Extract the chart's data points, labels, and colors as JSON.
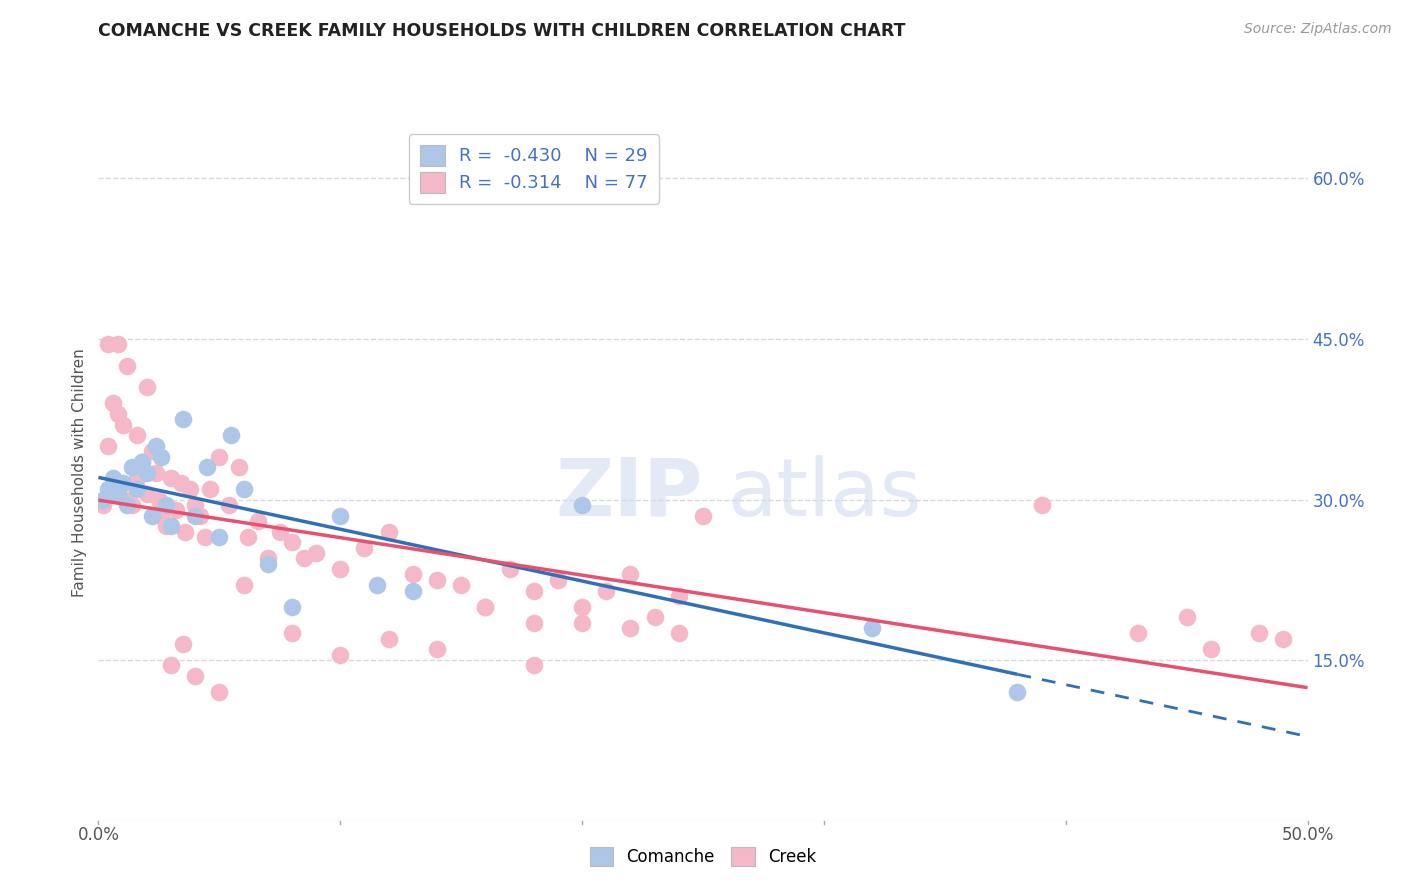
{
  "title": "COMANCHE VS CREEK FAMILY HOUSEHOLDS WITH CHILDREN CORRELATION CHART",
  "source": "Source: ZipAtlas.com",
  "ylabel": "Family Households with Children",
  "xlim": [
    0.0,
    0.5
  ],
  "ylim": [
    0.0,
    0.65
  ],
  "xticks": [
    0.0,
    0.1,
    0.2,
    0.3,
    0.4,
    0.5
  ],
  "xtick_labels": [
    "0.0%",
    "",
    "",
    "",
    "",
    "50.0%"
  ],
  "yticks": [
    0.15,
    0.3,
    0.45,
    0.6
  ],
  "ytick_labels": [
    "15.0%",
    "30.0%",
    "45.0%",
    "60.0%"
  ],
  "grid_color": "#d9d9d9",
  "background_color": "#ffffff",
  "comanche_color": "#aec6e8",
  "creek_color": "#f4b8c8",
  "trend_comanche_color": "#3070b8",
  "trend_creek_color": "#e85070",
  "R_comanche": -0.43,
  "N_comanche": 29,
  "R_creek": -0.314,
  "N_creek": 77,
  "comanche_x": [
    0.002,
    0.004,
    0.006,
    0.008,
    0.01,
    0.012,
    0.014,
    0.016,
    0.018,
    0.02,
    0.022,
    0.024,
    0.026,
    0.028,
    0.03,
    0.035,
    0.04,
    0.045,
    0.05,
    0.055,
    0.06,
    0.07,
    0.08,
    0.1,
    0.115,
    0.13,
    0.2,
    0.32,
    0.38
  ],
  "comanche_y": [
    0.3,
    0.31,
    0.32,
    0.305,
    0.315,
    0.295,
    0.33,
    0.31,
    0.335,
    0.325,
    0.285,
    0.35,
    0.34,
    0.295,
    0.275,
    0.375,
    0.285,
    0.33,
    0.265,
    0.36,
    0.31,
    0.24,
    0.2,
    0.285,
    0.22,
    0.215,
    0.295,
    0.18,
    0.12
  ],
  "creek_x": [
    0.002,
    0.004,
    0.005,
    0.006,
    0.008,
    0.01,
    0.012,
    0.014,
    0.016,
    0.018,
    0.02,
    0.022,
    0.024,
    0.026,
    0.028,
    0.03,
    0.032,
    0.034,
    0.036,
    0.038,
    0.04,
    0.042,
    0.044,
    0.046,
    0.05,
    0.054,
    0.058,
    0.062,
    0.066,
    0.07,
    0.075,
    0.08,
    0.085,
    0.09,
    0.1,
    0.11,
    0.12,
    0.13,
    0.14,
    0.15,
    0.16,
    0.17,
    0.18,
    0.19,
    0.2,
    0.21,
    0.22,
    0.23,
    0.24,
    0.25,
    0.004,
    0.008,
    0.012,
    0.016,
    0.02,
    0.025,
    0.03,
    0.035,
    0.04,
    0.05,
    0.06,
    0.08,
    0.1,
    0.12,
    0.14,
    0.16,
    0.18,
    0.2,
    0.22,
    0.24,
    0.18,
    0.39,
    0.43,
    0.45,
    0.46,
    0.48,
    0.49
  ],
  "creek_y": [
    0.295,
    0.35,
    0.31,
    0.39,
    0.38,
    0.37,
    0.3,
    0.295,
    0.32,
    0.335,
    0.305,
    0.345,
    0.325,
    0.285,
    0.275,
    0.32,
    0.29,
    0.315,
    0.27,
    0.31,
    0.295,
    0.285,
    0.265,
    0.31,
    0.34,
    0.295,
    0.33,
    0.265,
    0.28,
    0.245,
    0.27,
    0.26,
    0.245,
    0.25,
    0.235,
    0.255,
    0.27,
    0.23,
    0.225,
    0.22,
    0.2,
    0.235,
    0.215,
    0.225,
    0.2,
    0.215,
    0.23,
    0.19,
    0.21,
    0.285,
    0.445,
    0.445,
    0.425,
    0.36,
    0.405,
    0.3,
    0.145,
    0.165,
    0.135,
    0.12,
    0.22,
    0.175,
    0.155,
    0.17,
    0.16,
    0.2,
    0.185,
    0.185,
    0.18,
    0.175,
    0.145,
    0.295,
    0.175,
    0.19,
    0.16,
    0.175,
    0.17
  ]
}
